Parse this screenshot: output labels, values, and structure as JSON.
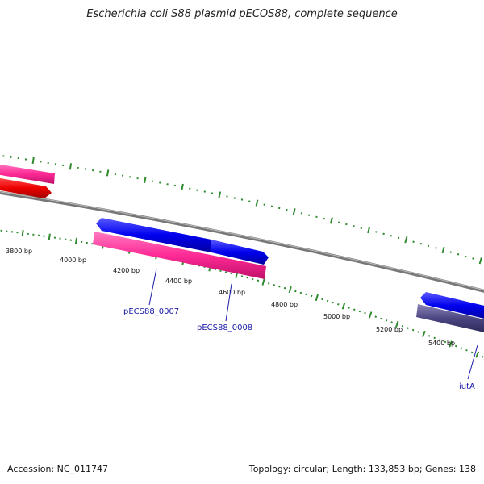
{
  "title": "Escherichia coli S88 plasmid pECOS88, complete sequence",
  "footer": {
    "accession": "Accession: NC_011747",
    "topology": "Topology: circular; Length: 133,853 bp; Genes: 138"
  },
  "ruler_labels": [
    "3800 bp",
    "4000 bp",
    "4200 bp",
    "4400 bp",
    "4600 bp",
    "4800 bp",
    "5000 bp",
    "5200 bp",
    "5400 bp"
  ],
  "gene_labels": [
    "pECS88_0007",
    "pECS88_0008",
    "iutA"
  ],
  "colors": {
    "backbone": "#808080",
    "tick": "#2e8b2e",
    "cds_blue": "#0000ee",
    "gene_pink": "#ff2a96",
    "rrna_red": "#ee0000",
    "gene_purple": "#4a4580",
    "label_blue": "#1a1aa8"
  }
}
